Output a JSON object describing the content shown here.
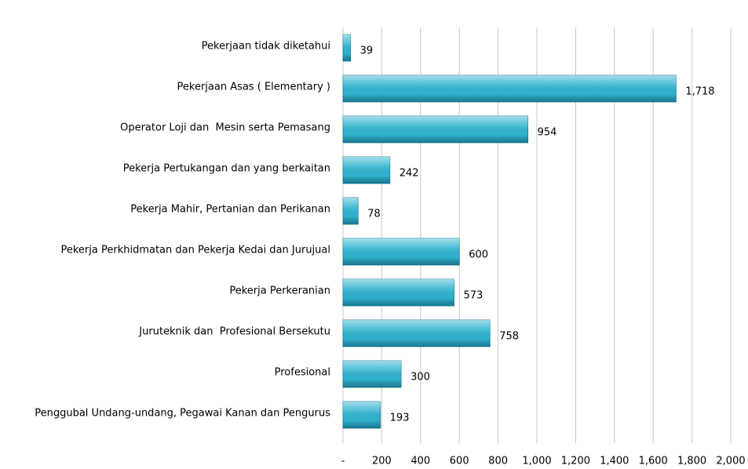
{
  "chart_data": {
    "type": "bar",
    "orientation": "horizontal",
    "categories": [
      "Pekerjaan tidak diketahui",
      "Pekerjaan Asas ( Elementary )",
      "Operator Loji dan  Mesin serta Pemasang",
      "Pekerja Pertukangan dan yang berkaitan",
      "Pekerja Mahir, Pertanian dan Perikanan",
      "Pekerja Perkhidmatan dan Pekerja Kedai dan Jurujual",
      "Pekerja Perkeranian",
      "Juruteknik dan  Profesional Bersekutu",
      "Profesional",
      "Penggubal Undang-undang, Pegawai Kanan dan Pengurus"
    ],
    "values": [
      39,
      1718,
      954,
      242,
      78,
      600,
      573,
      758,
      300,
      193
    ],
    "value_labels": [
      "39",
      "1,718",
      "954",
      "242",
      "78",
      "600",
      "573",
      "758",
      "300",
      "193"
    ],
    "color": "#2fb3d0",
    "xlim": [
      0,
      2000
    ],
    "xticks": [
      {
        "value": 0,
        "label": "-"
      },
      200,
      400,
      600,
      800,
      {
        "value": 1000,
        "label": "1,000"
      },
      {
        "value": 1200,
        "label": "1,200"
      },
      {
        "value": 1400,
        "label": "1,400"
      },
      {
        "value": 1600,
        "label": "1,600"
      },
      {
        "value": 1800,
        "label": "1,800"
      },
      {
        "value": 2000,
        "label": "2,000"
      }
    ],
    "grid": true
  }
}
